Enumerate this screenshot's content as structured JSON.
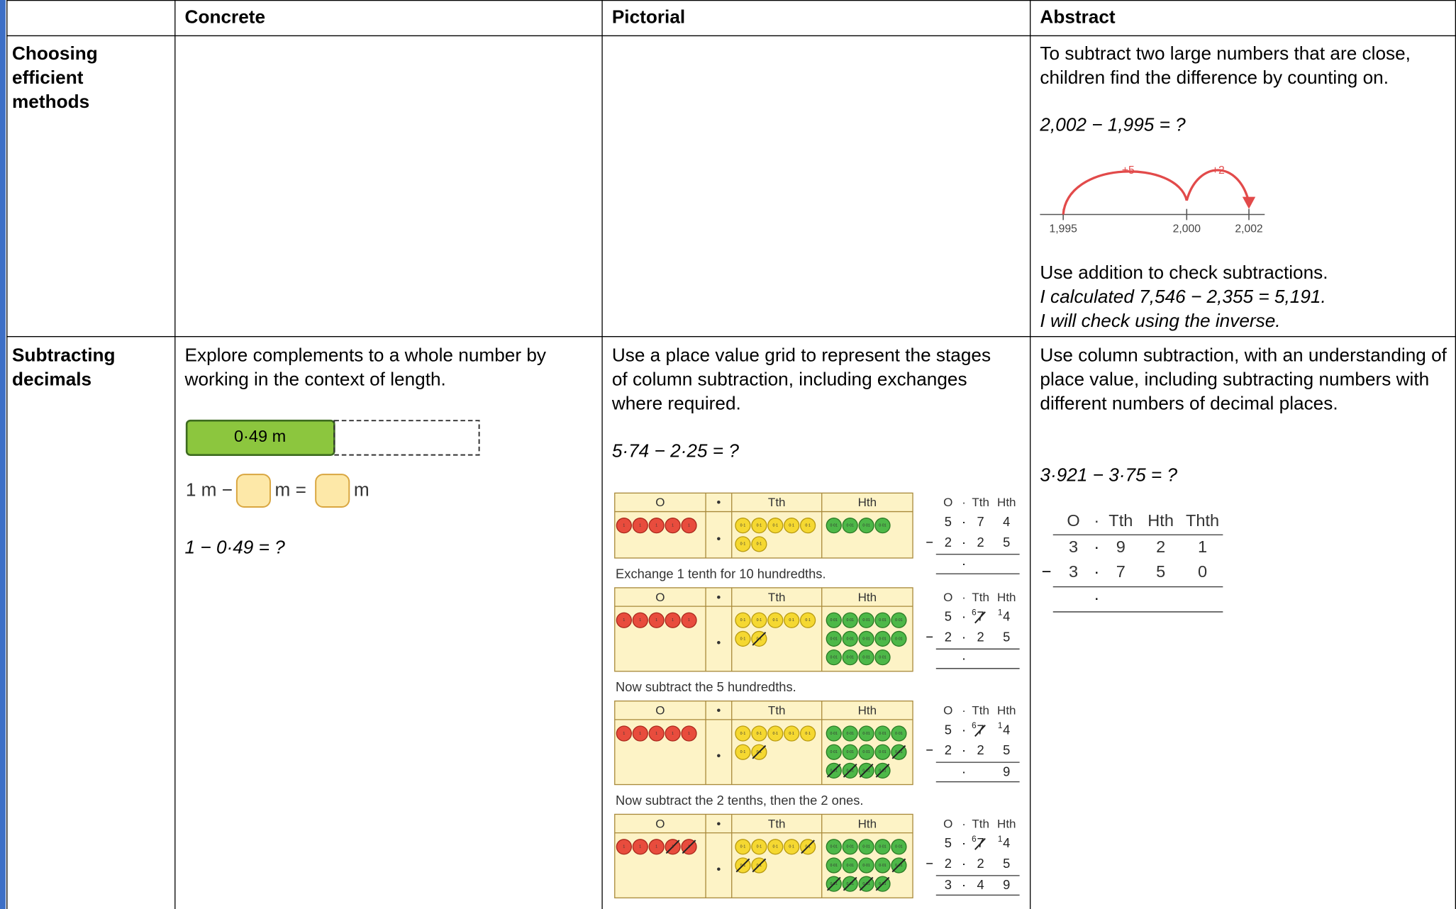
{
  "table": {
    "headers": [
      "Concrete",
      "Pictorial",
      "Abstract"
    ],
    "rows": [
      {
        "label": "Choosing efficient methods",
        "abstract": {
          "text": "To subtract two large numbers that are close, children find the difference by counting on.",
          "equation": "2,002 − 1,995 = ?",
          "number_line": {
            "jumps": [
              "+5",
              "+2"
            ],
            "labels": [
              "1,995",
              "2,000",
              "2,002"
            ]
          },
          "check_text": "Use addition to check subtractions.",
          "check_lines": [
            "I calculated 7,546 − 2,355 = 5,191.",
            "I will check using the inverse."
          ]
        }
      },
      {
        "label": "Subtracting decimals",
        "concrete": {
          "text": "Explore complements to a whole number by working in the context of length.",
          "bar_label": "0·49 m",
          "sentence": [
            "1 m −",
            "m =",
            "m"
          ],
          "equation": "1 − 0·49 = ?"
        },
        "pictorial": {
          "text": "Use a place value grid to represent the stages of column subtraction, including exchanges where required.",
          "equation": "5·74 − 2·25 = ?",
          "grid_headers": [
            "O",
            "•",
            "Tth",
            "Hth"
          ],
          "counter_labels": [
            "1",
            "0·1",
            "0·01"
          ],
          "written_headers": [
            "O",
            "·",
            "Tth",
            "Hth"
          ],
          "point": "·",
          "minus": "−",
          "stages": [
            {
              "ones": 5,
              "ones_crossed": 0,
              "tenths": 7,
              "tenths_crossed": 0,
              "hundredths": 4,
              "hundredths_crossed": 0,
              "top": [
                "5",
                "7",
                "4"
              ],
              "exchange": [
                null,
                null,
                null
              ],
              "bottom": [
                "2",
                "2",
                "5"
              ],
              "answer": [
                null,
                null,
                null
              ]
            },
            {
              "caption": "Exchange 1 tenth for 10 hundredths.",
              "ones": 5,
              "ones_crossed": 0,
              "tenths": 7,
              "tenths_crossed": 1,
              "hundredths": 14,
              "hundredths_crossed": 0,
              "top": [
                "5",
                "7",
                "4"
              ],
              "exchange": [
                null,
                "6",
                "1"
              ],
              "bottom": [
                "2",
                "2",
                "5"
              ],
              "answer": [
                null,
                null,
                null
              ]
            },
            {
              "caption": "Now subtract the 5 hundredths.",
              "ones": 5,
              "ones_crossed": 0,
              "tenths": 7,
              "tenths_crossed": 1,
              "hundredths": 14,
              "hundredths_crossed": 5,
              "top": [
                "5",
                "7",
                "4"
              ],
              "exchange": [
                null,
                "6",
                "1"
              ],
              "bottom": [
                "2",
                "2",
                "5"
              ],
              "answer": [
                null,
                null,
                "9"
              ]
            },
            {
              "caption": "Now subtract the 2 tenths, then the 2 ones.",
              "ones": 5,
              "ones_crossed": 2,
              "tenths": 7,
              "tenths_crossed": 3,
              "hundredths": 14,
              "hundredths_crossed": 5,
              "top": [
                "5",
                "7",
                "4"
              ],
              "exchange": [
                null,
                "6",
                "1"
              ],
              "bottom": [
                "2",
                "2",
                "5"
              ],
              "answer": [
                "3",
                "4",
                "9"
              ]
            }
          ]
        },
        "abstract": {
          "text": "Use column subtraction, with an understanding of place value, including subtracting numbers with different numbers of decimal places.",
          "equation": "3·921 − 3·75 = ?",
          "headers": [
            "O",
            "·",
            "Tth",
            "Hth",
            "Thth"
          ],
          "point": "·",
          "minus": "−",
          "top": [
            "3",
            "9",
            "2",
            "1"
          ],
          "bottom": [
            "3",
            "7",
            "5",
            "0"
          ]
        }
      }
    ]
  }
}
